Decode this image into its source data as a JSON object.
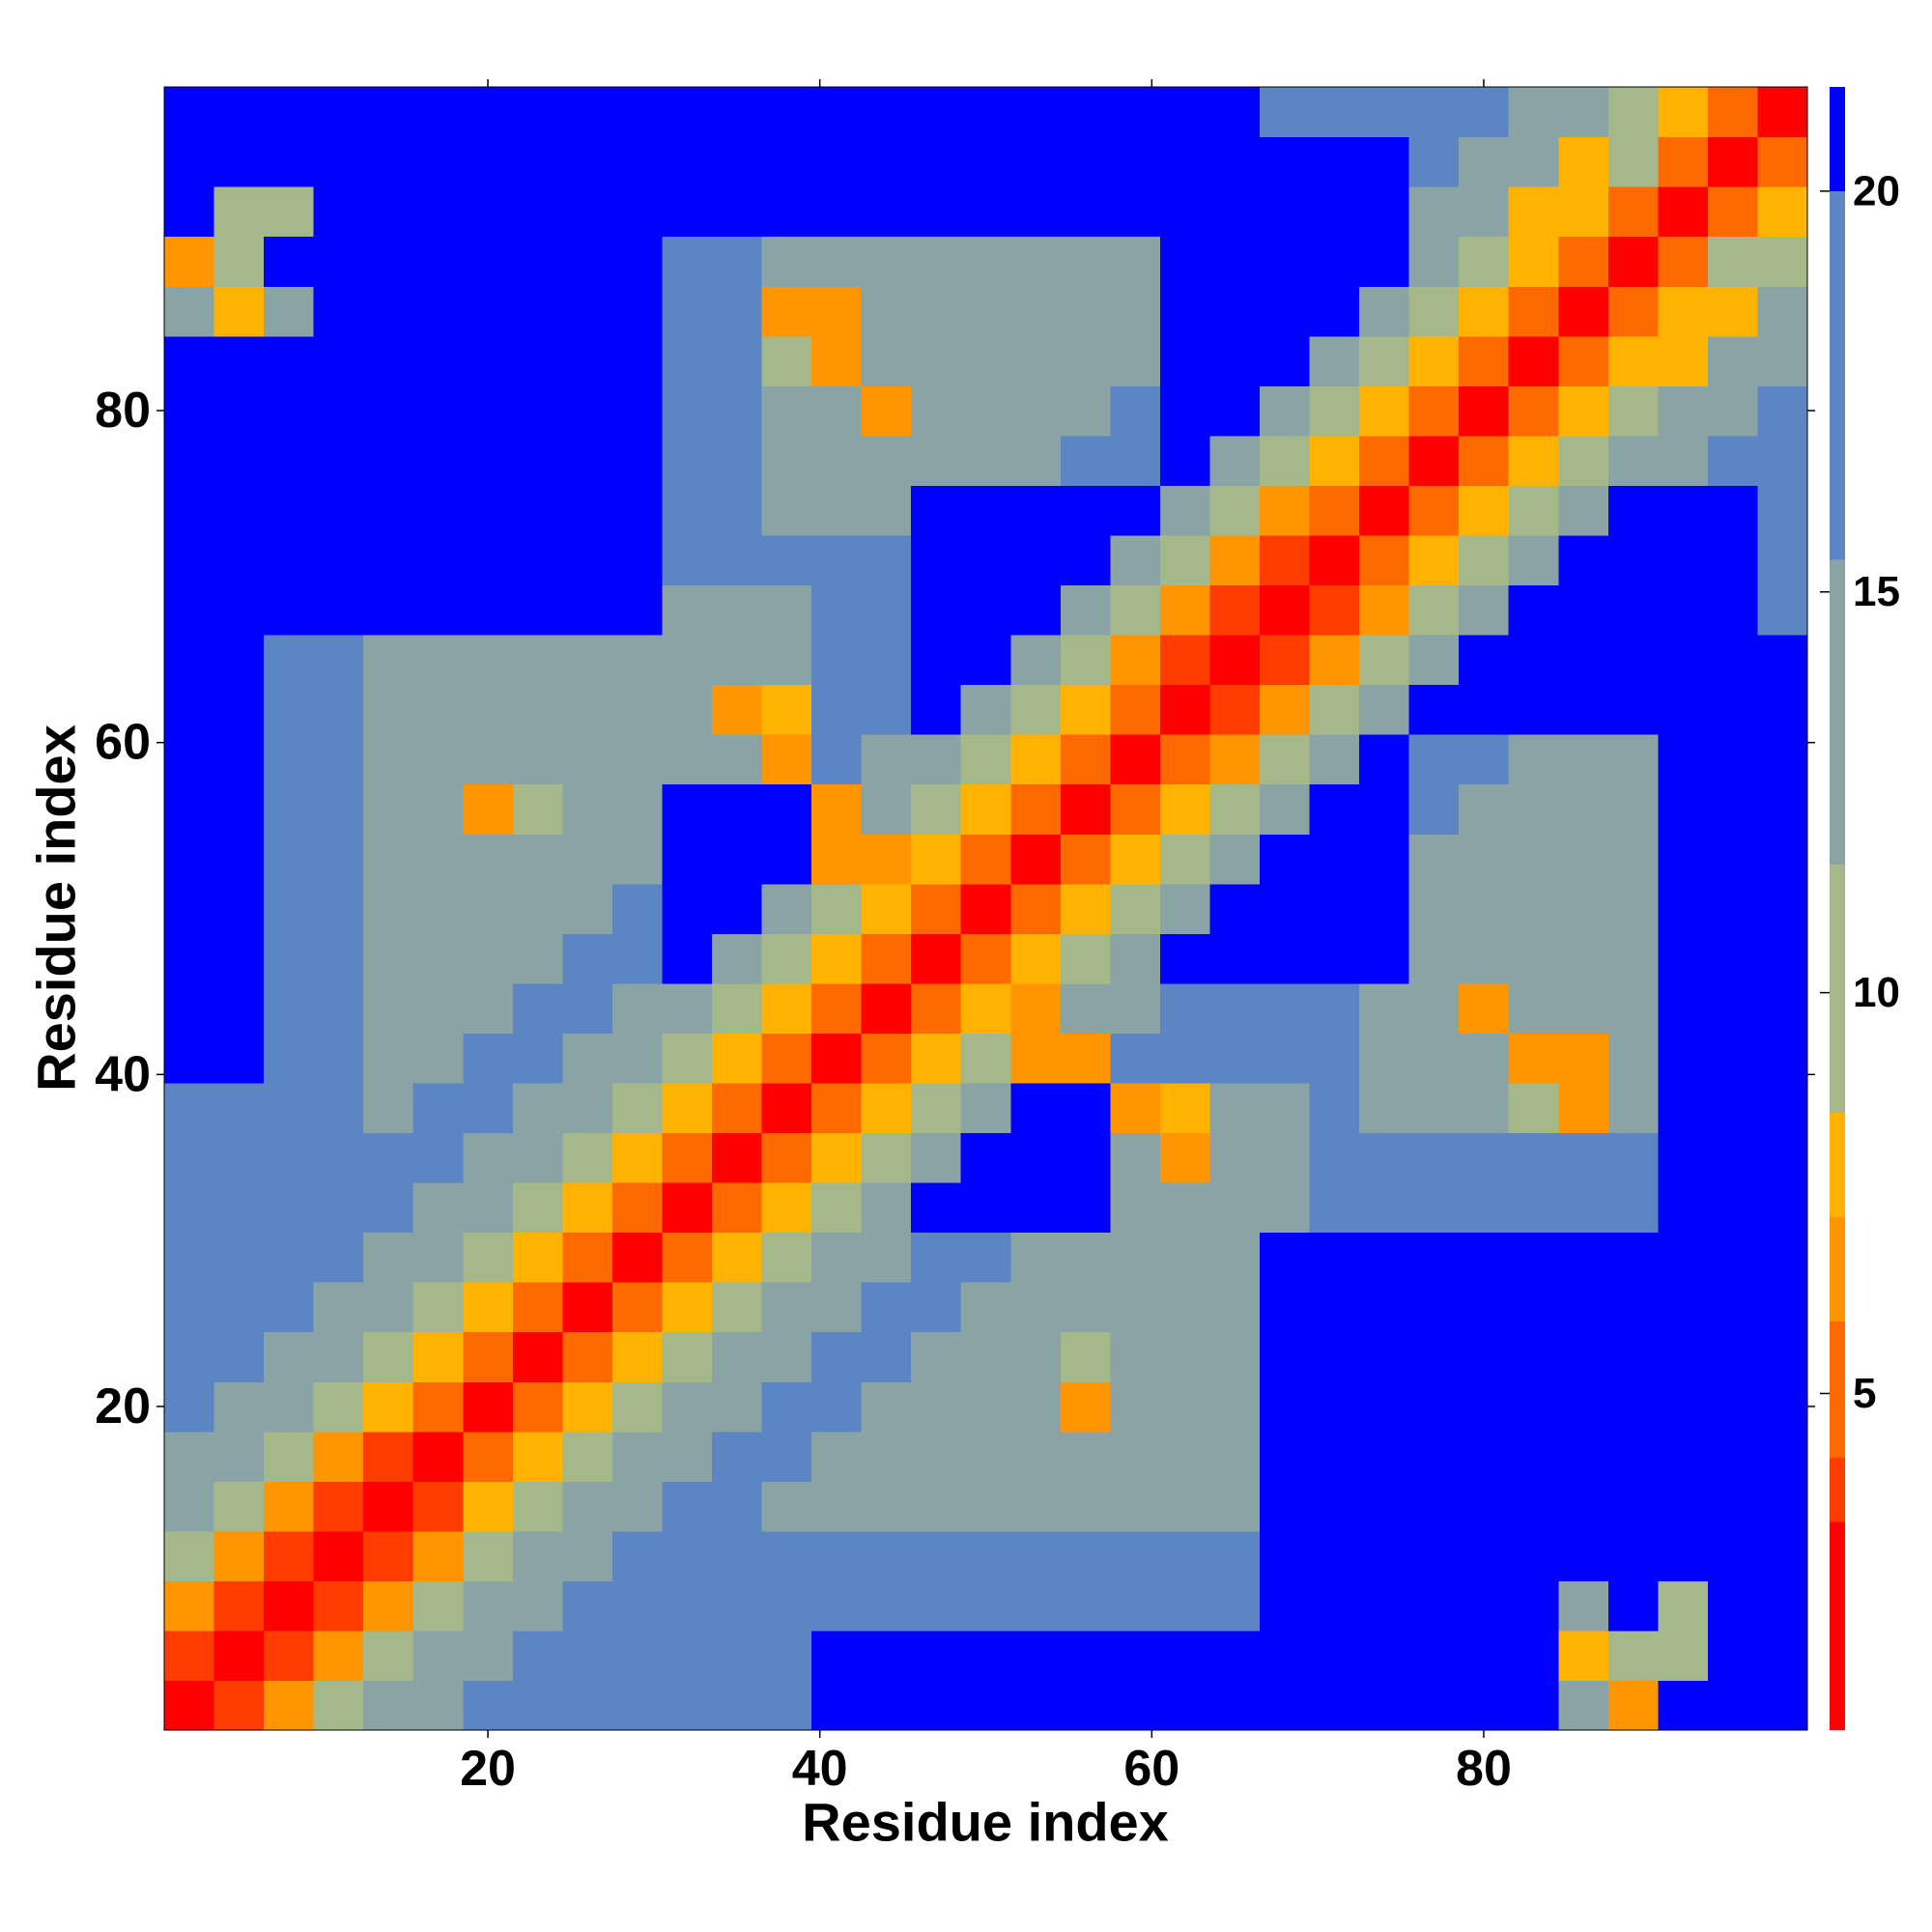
{
  "chart_data": {
    "type": "heatmap",
    "xlabel": "Residue index",
    "ylabel": "Residue index",
    "x": [
      2,
      5,
      8,
      11,
      14,
      17,
      20,
      23,
      26,
      29,
      32,
      35,
      38,
      41,
      44,
      47,
      50,
      53,
      56,
      59,
      62,
      65,
      68,
      71,
      74,
      77,
      80,
      83,
      86,
      89,
      92,
      95,
      98
    ],
    "y": [
      2,
      5,
      8,
      11,
      14,
      17,
      20,
      23,
      26,
      29,
      32,
      35,
      38,
      41,
      44,
      47,
      50,
      53,
      56,
      59,
      62,
      65,
      68,
      71,
      74,
      77,
      80,
      83,
      86,
      89,
      92,
      95,
      98
    ],
    "xlim": [
      0.5,
      99.5
    ],
    "ylim": [
      0.5,
      99.5
    ],
    "xticks": [
      20,
      40,
      60,
      80
    ],
    "yticks": [
      20,
      40,
      60,
      80
    ],
    "zlim": [
      0.8,
      21.3
    ],
    "zticks": [
      5,
      10,
      15,
      20
    ],
    "colorscale": [
      {
        "max": 3.4,
        "color": "#ff0000"
      },
      {
        "max": 4.2,
        "color": "#ff3c00"
      },
      {
        "max": 5.9,
        "color": "#ff6a00"
      },
      {
        "max": 7.2,
        "color": "#ff9500"
      },
      {
        "max": 8.5,
        "color": "#ffb300"
      },
      {
        "max": 11.6,
        "color": "#a5b88a"
      },
      {
        "max": 15.4,
        "color": "#8aa4a6"
      },
      {
        "max": 20,
        "color": "#5b86c3"
      },
      {
        "max": 21.3,
        "color": "#0000ff"
      }
    ],
    "z": [
      [
        2,
        4,
        7,
        10,
        12,
        14,
        16,
        17,
        19,
        19,
        19,
        19,
        19,
        21,
        21,
        21,
        21,
        21,
        21,
        21,
        21,
        21,
        21,
        21,
        21,
        21,
        21,
        21,
        12,
        7,
        21,
        21,
        21
      ],
      [
        4,
        2,
        4,
        7,
        10,
        12,
        14,
        16,
        17,
        19,
        19,
        19,
        19,
        21,
        21,
        21,
        21,
        21,
        21,
        21,
        21,
        21,
        21,
        21,
        21,
        21,
        21,
        21,
        8,
        10,
        9,
        21,
        21
      ],
      [
        7,
        4,
        2,
        4,
        7,
        10,
        12,
        14,
        16,
        17,
        19,
        19,
        19,
        19,
        19,
        19,
        19,
        19,
        19,
        19,
        19,
        19,
        21,
        21,
        21,
        21,
        21,
        21,
        12,
        21,
        9,
        21,
        21
      ],
      [
        10,
        7,
        4,
        2,
        4,
        7,
        10,
        12,
        14,
        16,
        17,
        19,
        19,
        19,
        19,
        19,
        19,
        19,
        19,
        19,
        19,
        19,
        21,
        21,
        21,
        21,
        21,
        21,
        21,
        21,
        21,
        21,
        21
      ],
      [
        12,
        10,
        7,
        4,
        2,
        4,
        8,
        10,
        12,
        14,
        16,
        17,
        15,
        15,
        15,
        15,
        15,
        15,
        15,
        15,
        15,
        15,
        21,
        21,
        21,
        21,
        21,
        21,
        21,
        21,
        21,
        21,
        21
      ],
      [
        14,
        12,
        10,
        7,
        4,
        2,
        5,
        8,
        10,
        12,
        14,
        16,
        17,
        15,
        15,
        15,
        15,
        15,
        15,
        15,
        15,
        15,
        21,
        21,
        21,
        21,
        21,
        21,
        21,
        21,
        21,
        21,
        21
      ],
      [
        16,
        14,
        12,
        10,
        8,
        5,
        2,
        5,
        8,
        10,
        12,
        14,
        16,
        17,
        15,
        15,
        15,
        15,
        6,
        15,
        15,
        15,
        21,
        21,
        21,
        21,
        21,
        21,
        21,
        21,
        21,
        21,
        21
      ],
      [
        17,
        16,
        14,
        12,
        10,
        8,
        5,
        2,
        5,
        8,
        10,
        12,
        14,
        16,
        17,
        15,
        15,
        15,
        9,
        15,
        15,
        15,
        21,
        21,
        21,
        21,
        21,
        21,
        21,
        21,
        21,
        21,
        21
      ],
      [
        19,
        17,
        16,
        14,
        12,
        10,
        8,
        5,
        2,
        5,
        8,
        10,
        12,
        14,
        16,
        17,
        15,
        15,
        15,
        15,
        15,
        15,
        21,
        21,
        21,
        21,
        21,
        21,
        21,
        21,
        21,
        21,
        21
      ],
      [
        19,
        19,
        17,
        16,
        14,
        12,
        10,
        8,
        5,
        2,
        5,
        8,
        10,
        12,
        14,
        16,
        17,
        15,
        15,
        15,
        15,
        15,
        21,
        21,
        21,
        21,
        21,
        21,
        21,
        21,
        21,
        21,
        21
      ],
      [
        19,
        19,
        19,
        17,
        16,
        14,
        12,
        10,
        8,
        5,
        2,
        5,
        8,
        10,
        12,
        21,
        21,
        21,
        21,
        15,
        15,
        15,
        15,
        19,
        19,
        19,
        19,
        19,
        19,
        19,
        21,
        21,
        21
      ],
      [
        19,
        19,
        19,
        19,
        17,
        16,
        14,
        12,
        10,
        8,
        5,
        2,
        5,
        8,
        10,
        12,
        21,
        21,
        21,
        15,
        6,
        15,
        15,
        19,
        19,
        19,
        19,
        19,
        19,
        19,
        21,
        21,
        21
      ],
      [
        19,
        19,
        19,
        19,
        15,
        17,
        16,
        14,
        12,
        10,
        8,
        5,
        2,
        5,
        8,
        10,
        12,
        21,
        21,
        6,
        8,
        15,
        15,
        19,
        15,
        15,
        15,
        9,
        6,
        15,
        21,
        21,
        21
      ],
      [
        21,
        21,
        19,
        19,
        15,
        15,
        17,
        16,
        14,
        12,
        10,
        8,
        5,
        2,
        5,
        8,
        10,
        7,
        6,
        16,
        17,
        19,
        19,
        19,
        15,
        15,
        15,
        6,
        7,
        15,
        21,
        21,
        21
      ],
      [
        21,
        21,
        19,
        19,
        15,
        15,
        15,
        17,
        16,
        14,
        12,
        10,
        8,
        5,
        2,
        5,
        8,
        6,
        12,
        14,
        16,
        17,
        19,
        19,
        15,
        15,
        6,
        15,
        15,
        15,
        21,
        21,
        21
      ],
      [
        21,
        21,
        19,
        19,
        15,
        15,
        15,
        15,
        17,
        16,
        21,
        12,
        10,
        8,
        5,
        2,
        5,
        8,
        10,
        12,
        21,
        21,
        21,
        21,
        21,
        15,
        15,
        15,
        15,
        15,
        21,
        21,
        21
      ],
      [
        21,
        21,
        19,
        19,
        15,
        15,
        15,
        15,
        15,
        17,
        21,
        21,
        12,
        10,
        8,
        5,
        2,
        5,
        8,
        10,
        12,
        21,
        21,
        21,
        21,
        15,
        15,
        15,
        15,
        15,
        21,
        21,
        21
      ],
      [
        21,
        21,
        19,
        19,
        15,
        15,
        15,
        15,
        15,
        15,
        21,
        21,
        21,
        7,
        6,
        8,
        5,
        2,
        5,
        8,
        10,
        12,
        21,
        21,
        21,
        15,
        15,
        15,
        15,
        15,
        21,
        21,
        21
      ],
      [
        21,
        21,
        19,
        19,
        15,
        15,
        6,
        9,
        15,
        15,
        21,
        21,
        21,
        6,
        12,
        10,
        8,
        5,
        2,
        5,
        8,
        10,
        12,
        21,
        21,
        16,
        15,
        15,
        15,
        15,
        21,
        21,
        21
      ],
      [
        21,
        21,
        19,
        19,
        15,
        15,
        15,
        15,
        15,
        15,
        15,
        15,
        6,
        16,
        14,
        12,
        10,
        8,
        5,
        2,
        5,
        7,
        10,
        12,
        21,
        16,
        17,
        15,
        15,
        15,
        21,
        21,
        21
      ],
      [
        21,
        21,
        19,
        19,
        15,
        15,
        15,
        15,
        15,
        15,
        15,
        6,
        8,
        17,
        16,
        21,
        12,
        10,
        8,
        5,
        2,
        4,
        7,
        10,
        12,
        21,
        21,
        21,
        21,
        21,
        21,
        21,
        21
      ],
      [
        21,
        21,
        19,
        19,
        15,
        15,
        15,
        15,
        15,
        15,
        15,
        15,
        15,
        19,
        17,
        21,
        21,
        12,
        10,
        7,
        4,
        2,
        4,
        7,
        10,
        12,
        21,
        21,
        21,
        21,
        21,
        21,
        21
      ],
      [
        21,
        21,
        21,
        21,
        21,
        21,
        21,
        21,
        21,
        21,
        15,
        15,
        15,
        19,
        19,
        21,
        21,
        21,
        12,
        10,
        7,
        4,
        2,
        4,
        7,
        10,
        12,
        21,
        21,
        21,
        21,
        21,
        19
      ],
      [
        21,
        21,
        21,
        21,
        21,
        21,
        21,
        21,
        21,
        21,
        19,
        19,
        19,
        19,
        19,
        21,
        21,
        21,
        21,
        12,
        10,
        7,
        4,
        2,
        5,
        8,
        10,
        12,
        21,
        21,
        21,
        21,
        19
      ],
      [
        21,
        21,
        21,
        21,
        21,
        21,
        21,
        21,
        21,
        21,
        19,
        19,
        15,
        15,
        15,
        21,
        21,
        21,
        21,
        21,
        12,
        10,
        7,
        5,
        2,
        5,
        8,
        10,
        12,
        21,
        21,
        21,
        19
      ],
      [
        21,
        21,
        21,
        21,
        21,
        21,
        21,
        21,
        21,
        21,
        19,
        19,
        15,
        15,
        15,
        15,
        15,
        15,
        16,
        16,
        21,
        12,
        10,
        8,
        5,
        2,
        5,
        8,
        10,
        12,
        14,
        16,
        17
      ],
      [
        21,
        21,
        21,
        21,
        21,
        21,
        21,
        21,
        21,
        21,
        19,
        19,
        15,
        15,
        6,
        15,
        15,
        15,
        15,
        17,
        21,
        21,
        12,
        10,
        8,
        5,
        2,
        5,
        8,
        10,
        12,
        14,
        16
      ],
      [
        21,
        21,
        21,
        21,
        21,
        21,
        21,
        21,
        21,
        21,
        19,
        19,
        9,
        6,
        15,
        15,
        15,
        15,
        15,
        15,
        21,
        21,
        21,
        12,
        10,
        8,
        5,
        2,
        5,
        8,
        8,
        12,
        14
      ],
      [
        12,
        8,
        12,
        21,
        21,
        21,
        21,
        21,
        21,
        21,
        19,
        19,
        6,
        7,
        15,
        15,
        15,
        15,
        15,
        15,
        21,
        21,
        21,
        21,
        12,
        10,
        8,
        5,
        2,
        5,
        8,
        8,
        12
      ],
      [
        7,
        10,
        21,
        21,
        21,
        21,
        21,
        21,
        21,
        21,
        19,
        19,
        15,
        15,
        15,
        15,
        15,
        15,
        15,
        15,
        21,
        21,
        21,
        21,
        21,
        12,
        10,
        8,
        5,
        2,
        5,
        10,
        10
      ],
      [
        21,
        9,
        9,
        21,
        21,
        21,
        21,
        21,
        21,
        21,
        21,
        21,
        21,
        21,
        21,
        21,
        21,
        21,
        21,
        21,
        21,
        21,
        21,
        21,
        21,
        14,
        12,
        8,
        8,
        5,
        2,
        5,
        8
      ],
      [
        21,
        21,
        21,
        21,
        21,
        21,
        21,
        21,
        21,
        21,
        21,
        21,
        21,
        21,
        21,
        21,
        21,
        21,
        21,
        21,
        21,
        21,
        21,
        21,
        21,
        16,
        14,
        12,
        8,
        10,
        5,
        2,
        5
      ],
      [
        21,
        21,
        21,
        21,
        21,
        21,
        21,
        21,
        21,
        21,
        21,
        21,
        21,
        21,
        21,
        21,
        21,
        21,
        21,
        21,
        21,
        21,
        19,
        19,
        19,
        17,
        16,
        14,
        12,
        10,
        8,
        5,
        2
      ]
    ]
  }
}
